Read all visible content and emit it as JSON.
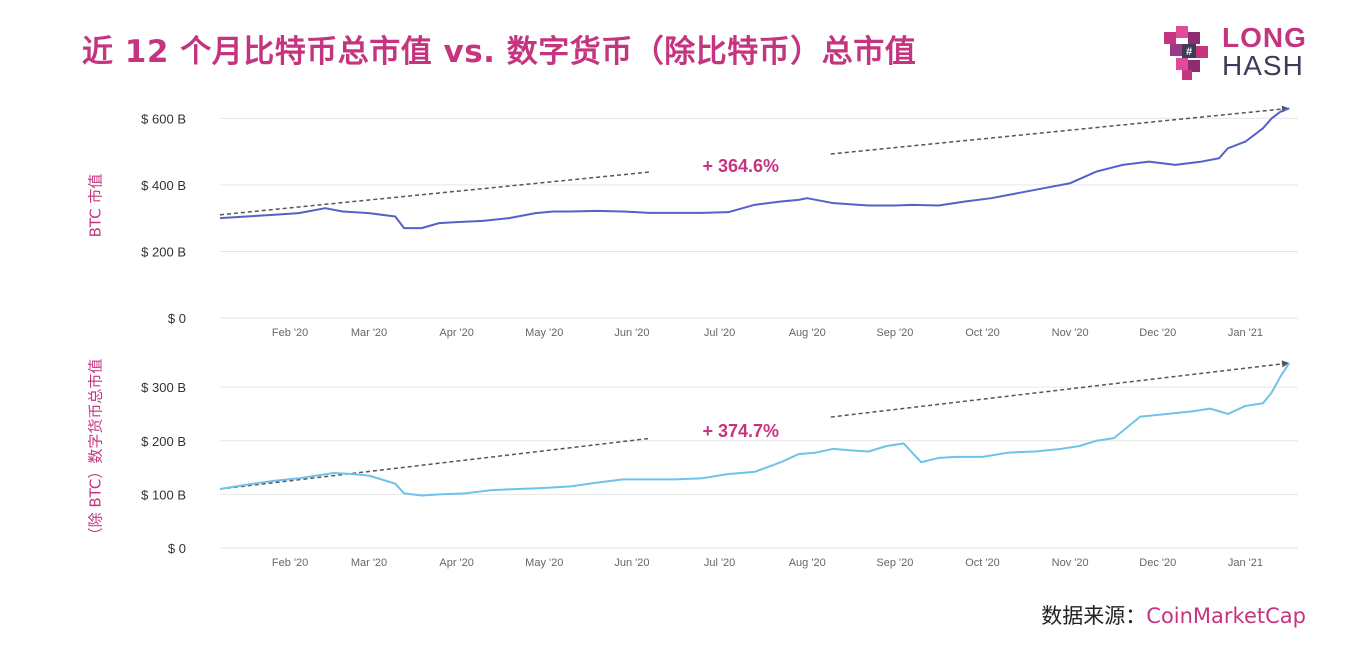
{
  "title": "近 12 个月比特币总市值  vs.  数字货币（除比特币）总市值",
  "logo": {
    "top": "LONG",
    "bottom": "HASH"
  },
  "source": {
    "label": "数据来源：",
    "name": "CoinMarketCap"
  },
  "colors": {
    "accent": "#c5357f",
    "btc_line": "#5561c9",
    "alt_line": "#6ec3ea",
    "trend": "#555555",
    "grid": "#e6e6e6"
  },
  "chart_data": [
    {
      "type": "line",
      "ylabel": "BTC 市值",
      "yticks": [
        "$ 600 B",
        "$ 400 B",
        "$ 200 B",
        "$ 0"
      ],
      "ytick_values": [
        600,
        400,
        200,
        0
      ],
      "ylim": [
        0,
        640
      ],
      "xlim": [
        0,
        12.3
      ],
      "xticks": [
        "Feb '20",
        "Mar '20",
        "Apr '20",
        "May '20",
        "Jun '20",
        "Jul '20",
        "Aug '20",
        "Sep '20",
        "Oct '20",
        "Nov '20",
        "Dec '20",
        "Jan '21"
      ],
      "xtick_positions": [
        0.8,
        1.7,
        2.7,
        3.7,
        4.7,
        5.7,
        6.7,
        7.7,
        8.7,
        9.7,
        10.7,
        11.7
      ],
      "annotation": "+ 364.6%",
      "annotation_pos": {
        "x": 5.6,
        "y": 470
      },
      "trend": {
        "from": [
          0,
          310
        ],
        "to": [
          12.2,
          630
        ]
      },
      "series": [
        {
          "x": [
            0,
            0.3,
            0.6,
            0.9,
            1.2,
            1.4,
            1.7,
            2.0,
            2.1,
            2.3,
            2.5,
            2.7,
            3.0,
            3.3,
            3.6,
            3.8,
            4.0,
            4.3,
            4.6,
            4.9,
            5.2,
            5.5,
            5.8,
            6.1,
            6.4,
            6.6,
            6.7,
            7.0,
            7.4,
            7.7,
            7.9,
            8.2,
            8.5,
            8.8,
            9.1,
            9.4,
            9.7,
            10.0,
            10.3,
            10.6,
            10.9,
            11.2,
            11.4,
            11.5,
            11.7,
            11.9,
            12.0,
            12.1,
            12.2
          ],
          "y": [
            300,
            305,
            310,
            315,
            330,
            320,
            315,
            305,
            270,
            270,
            285,
            288,
            292,
            300,
            315,
            320,
            320,
            322,
            320,
            316,
            316,
            316,
            318,
            340,
            350,
            355,
            360,
            345,
            338,
            338,
            340,
            338,
            350,
            360,
            375,
            390,
            405,
            440,
            460,
            470,
            460,
            470,
            480,
            510,
            530,
            570,
            600,
            620,
            630
          ]
        }
      ]
    },
    {
      "type": "line",
      "ylabel": "（除 BTC）数字货币总市值",
      "yticks": [
        "$ 300 B",
        "$ 200 B",
        "$ 100 B",
        "$ 0"
      ],
      "ytick_values": [
        300,
        200,
        100,
        0
      ],
      "ylim": [
        0,
        360
      ],
      "xlim": [
        0,
        12.3
      ],
      "xticks": [
        "Feb '20",
        "Mar '20",
        "Apr '20",
        "May '20",
        "Jun '20",
        "Jul '20",
        "Aug '20",
        "Sep '20",
        "Oct '20",
        "Nov '20",
        "Dec '20",
        "Jan '21"
      ],
      "xtick_positions": [
        0.8,
        1.7,
        2.7,
        3.7,
        4.7,
        5.7,
        6.7,
        7.7,
        8.7,
        9.7,
        10.7,
        11.7
      ],
      "annotation": "+ 374.7%",
      "annotation_pos": {
        "x": 5.6,
        "y": 220
      },
      "trend": {
        "from": [
          0,
          110
        ],
        "to": [
          12.2,
          345
        ]
      },
      "series": [
        {
          "x": [
            0,
            0.3,
            0.6,
            0.9,
            1.1,
            1.3,
            1.5,
            1.7,
            1.9,
            2.0,
            2.1,
            2.3,
            2.5,
            2.8,
            3.1,
            3.4,
            3.7,
            4.0,
            4.3,
            4.6,
            4.9,
            5.2,
            5.5,
            5.8,
            6.1,
            6.4,
            6.6,
            6.8,
            7.0,
            7.2,
            7.4,
            7.6,
            7.8,
            8.0,
            8.2,
            8.4,
            8.7,
            9.0,
            9.3,
            9.6,
            9.8,
            10.0,
            10.2,
            10.5,
            10.8,
            11.1,
            11.3,
            11.5,
            11.7,
            11.9,
            12.0,
            12.1,
            12.2
          ],
          "y": [
            110,
            118,
            125,
            130,
            135,
            140,
            138,
            135,
            125,
            120,
            102,
            98,
            100,
            102,
            108,
            110,
            112,
            115,
            122,
            128,
            128,
            128,
            130,
            138,
            142,
            160,
            175,
            178,
            185,
            182,
            180,
            190,
            195,
            160,
            168,
            170,
            170,
            178,
            180,
            185,
            190,
            200,
            205,
            245,
            250,
            255,
            260,
            250,
            265,
            270,
            290,
            320,
            345
          ]
        }
      ]
    }
  ]
}
